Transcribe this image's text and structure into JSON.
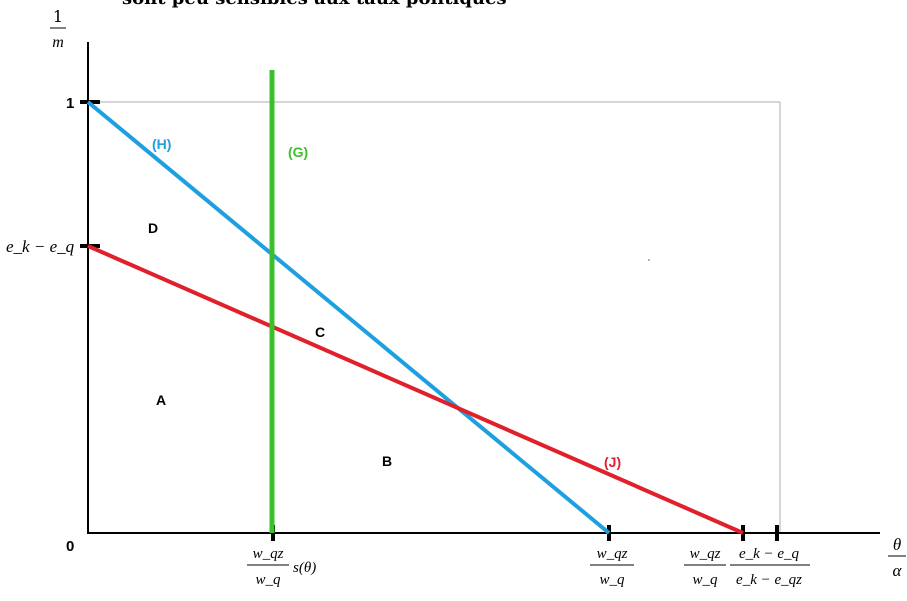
{
  "header_fragment": "sont peu sensibles aux taux politiques",
  "y_axis": {
    "label_num": "1",
    "label_den": "m",
    "tick_top": "1",
    "tick_mid": "e_k − e_q",
    "origin": "0"
  },
  "x_axis": {
    "label_num": "θ",
    "label_den": "α",
    "tick1_num": "w_qz",
    "tick1_den": "w_q",
    "tick1_suffix": "s(θ)",
    "tick2_num": "w_qz",
    "tick2_den": "w_q",
    "tick3_a_num": "w_qz",
    "tick3_a_den": "w_q",
    "tick3_b_num": "e_k − e_q",
    "tick3_b_den": "e_k − e_qz"
  },
  "curves": {
    "H": {
      "label": "(H)",
      "color": "#1ea0e0"
    },
    "G": {
      "label": "(G)",
      "color": "#3cbf2c"
    },
    "J": {
      "label": "(J)",
      "color": "#e0202a"
    }
  },
  "regions": {
    "A": "A",
    "B": "B",
    "C": "C",
    "D": "D"
  }
}
